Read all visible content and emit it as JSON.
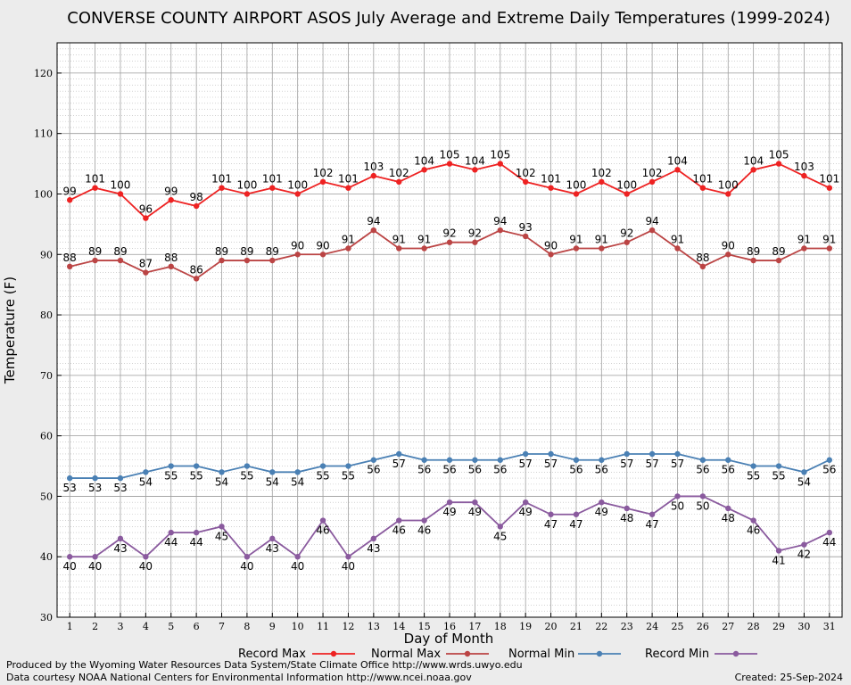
{
  "chart_data": {
    "type": "line",
    "title": "CONVERSE COUNTY AIRPORT ASOS July Average and Extreme Daily Temperatures (1999-2024)",
    "xlabel": "Day of Month",
    "ylabel": "Temperature (F)",
    "x": [
      1,
      2,
      3,
      4,
      5,
      6,
      7,
      8,
      9,
      10,
      11,
      12,
      13,
      14,
      15,
      16,
      17,
      18,
      19,
      20,
      21,
      22,
      23,
      24,
      25,
      26,
      27,
      28,
      29,
      30,
      31
    ],
    "xlim": [
      0.5,
      31.5
    ],
    "ylim": [
      30,
      125
    ],
    "yticks": [
      30,
      40,
      50,
      60,
      70,
      80,
      90,
      100,
      110,
      120
    ],
    "grid": true,
    "legend_position": "bottom",
    "series": [
      {
        "name": "Record Max",
        "color": "#ee2222",
        "values": [
          99,
          101,
          100,
          96,
          99,
          98,
          101,
          100,
          101,
          100,
          102,
          101,
          103,
          102,
          104,
          105,
          104,
          105,
          102,
          101,
          100,
          102,
          100,
          102,
          104,
          101,
          100,
          104,
          105,
          103,
          101
        ]
      },
      {
        "name": "Normal Max",
        "color": "#bb4444",
        "values": [
          88,
          89,
          89,
          87,
          88,
          86,
          89,
          89,
          89,
          90,
          90,
          91,
          94,
          91,
          91,
          92,
          92,
          94,
          93,
          90,
          91,
          91,
          92,
          94,
          91,
          88,
          90,
          89,
          89,
          91,
          91
        ]
      },
      {
        "name": "Normal Min",
        "color": "#4a80b4",
        "values": [
          53,
          53,
          53,
          54,
          55,
          55,
          54,
          55,
          54,
          54,
          55,
          55,
          56,
          57,
          56,
          56,
          56,
          56,
          57,
          57,
          56,
          56,
          57,
          57,
          57,
          56,
          56,
          55,
          55,
          54,
          56
        ]
      },
      {
        "name": "Record Min",
        "color": "#8a5a9e",
        "values": [
          40,
          40,
          43,
          40,
          44,
          44,
          45,
          40,
          43,
          40,
          46,
          40,
          43,
          46,
          46,
          49,
          49,
          45,
          49,
          47,
          47,
          49,
          48,
          47,
          50,
          50,
          48,
          46,
          41,
          42,
          44
        ]
      }
    ]
  },
  "footer": {
    "credit_line1": "Produced by the Wyoming Water Resources Data System/State Climate Office http://www.wrds.uwyo.edu",
    "credit_line2": "Data courtesy NOAA National Centers for Environmental Information http://www.ncei.noaa.gov",
    "created": "Created:  25-Sep-2024"
  }
}
